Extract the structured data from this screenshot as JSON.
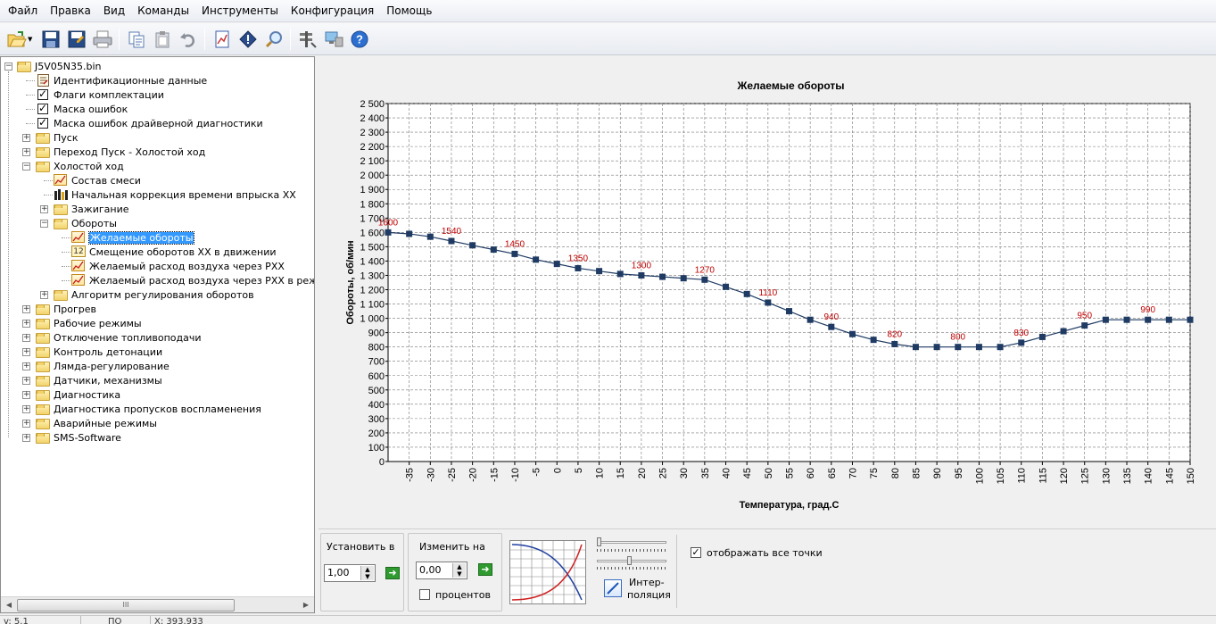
{
  "menu": [
    "Файл",
    "Правка",
    "Вид",
    "Команды",
    "Инструменты",
    "Конфигурация",
    "Помощь"
  ],
  "toolbar": {
    "icons": [
      "open-folder-icon",
      "save-icon",
      "save-as-icon",
      "print-icon",
      "copy-icon",
      "paste-icon",
      "undo-icon",
      "calibration-compare-icon",
      "error-info-icon",
      "search-icon",
      "settings-icon",
      "connect-icon",
      "help-icon"
    ]
  },
  "tree": {
    "root": "J5V05N35.bin",
    "items": [
      {
        "label": "Идентификационные данные",
        "icon": "document-icon",
        "level": 1,
        "expander": ""
      },
      {
        "label": "Флаги комплектации",
        "icon": "checkbox-icon",
        "level": 1,
        "expander": ""
      },
      {
        "label": "Маска ошибок",
        "icon": "checkbox-icon",
        "level": 1,
        "expander": ""
      },
      {
        "label": "Маска ошибок драйверной диагностики",
        "icon": "checkbox-icon",
        "level": 1,
        "expander": ""
      },
      {
        "label": "Пуск",
        "icon": "folder-icon",
        "level": 1,
        "expander": "+"
      },
      {
        "label": "Переход Пуск - Холостой ход",
        "icon": "folder-icon",
        "level": 1,
        "expander": "+"
      },
      {
        "label": "Холостой ход",
        "icon": "folder-icon",
        "level": 1,
        "expander": "-"
      },
      {
        "label": "Состав смеси",
        "icon": "graph-icon",
        "level": 2,
        "expander": ""
      },
      {
        "label": "Начальная коррекция времени впрыска ХХ",
        "icon": "bar-chart-icon",
        "level": 2,
        "expander": ""
      },
      {
        "label": "Зажигание",
        "icon": "folder-icon",
        "level": 2,
        "expander": "+"
      },
      {
        "label": "Обороты",
        "icon": "folder-icon",
        "level": 2,
        "expander": "-"
      },
      {
        "label": "Желаемые обороты",
        "icon": "graph-icon",
        "level": 3,
        "expander": "",
        "selected": true
      },
      {
        "label": "Смещение оборотов ХХ в движении",
        "icon": "number-icon",
        "level": 3,
        "expander": ""
      },
      {
        "label": "Желаемый расход воздуха через РХХ",
        "icon": "graph-icon",
        "level": 3,
        "expander": ""
      },
      {
        "label": "Желаемый расход воздуха через РХХ в режиме г",
        "icon": "graph-icon",
        "level": 3,
        "expander": ""
      },
      {
        "label": "Алгоритм регулирования оборотов",
        "icon": "folder-icon",
        "level": 2,
        "expander": "+"
      },
      {
        "label": "Прогрев",
        "icon": "folder-icon",
        "level": 1,
        "expander": "+"
      },
      {
        "label": "Рабочие режимы",
        "icon": "folder-icon",
        "level": 1,
        "expander": "+"
      },
      {
        "label": "Отключение топливоподачи",
        "icon": "folder-icon",
        "level": 1,
        "expander": "+"
      },
      {
        "label": "Контроль детонации",
        "icon": "folder-icon",
        "level": 1,
        "expander": "+"
      },
      {
        "label": "Лямда-регулирование",
        "icon": "folder-icon",
        "level": 1,
        "expander": "+"
      },
      {
        "label": "Датчики, механизмы",
        "icon": "folder-icon",
        "level": 1,
        "expander": "+"
      },
      {
        "label": "Диагностика",
        "icon": "folder-icon",
        "level": 1,
        "expander": "+"
      },
      {
        "label": "Диагностика пропусков воспламенения",
        "icon": "folder-icon",
        "level": 1,
        "expander": "+"
      },
      {
        "label": "Аварийные режимы",
        "icon": "folder-icon",
        "level": 1,
        "expander": "+"
      },
      {
        "label": "SMS-Software",
        "icon": "folder-icon",
        "level": 1,
        "expander": "+"
      }
    ]
  },
  "chart_data": {
    "type": "line",
    "title": "Желаемые обороты",
    "xlabel": "Температура, град.С",
    "ylabel": "Обороты, об/мин",
    "x_ticks": [
      -35,
      -30,
      -25,
      -20,
      -15,
      -10,
      -5,
      0,
      5,
      10,
      15,
      20,
      25,
      30,
      35,
      40,
      45,
      50,
      55,
      60,
      65,
      70,
      75,
      80,
      85,
      90,
      95,
      100,
      105,
      110,
      115,
      120,
      125,
      130,
      135,
      140,
      145,
      150
    ],
    "y_ticks": [
      "0",
      "100",
      "200",
      "300",
      "400",
      "500",
      "600",
      "700",
      "800",
      "900",
      "1 000",
      "1 100",
      "1 200",
      "1 300",
      "1 400",
      "1 500",
      "1 600",
      "1 700",
      "1 800",
      "1 900",
      "2 000",
      "2 100",
      "2 200",
      "2 300",
      "2 400",
      "2 500"
    ],
    "xlim": [
      -40,
      150
    ],
    "ylim": [
      0,
      2500
    ],
    "grid": true,
    "line_color": "#1f3b63",
    "marker_color": "#1f3b63",
    "label_color": "#c00000",
    "x": [
      -40,
      -35,
      -30,
      -25,
      -20,
      -15,
      -10,
      -5,
      0,
      5,
      10,
      15,
      20,
      25,
      30,
      35,
      40,
      45,
      50,
      55,
      60,
      65,
      70,
      75,
      80,
      85,
      90,
      95,
      100,
      105,
      110,
      115,
      120,
      125,
      130,
      135,
      140,
      145,
      150
    ],
    "y": [
      1600,
      1590,
      1570,
      1540,
      1510,
      1480,
      1450,
      1410,
      1380,
      1350,
      1330,
      1310,
      1300,
      1290,
      1280,
      1270,
      1220,
      1170,
      1110,
      1050,
      990,
      940,
      890,
      850,
      820,
      800,
      800,
      800,
      800,
      800,
      830,
      870,
      910,
      950,
      990,
      990,
      990,
      990,
      990
    ],
    "point_labels": [
      {
        "x": -40,
        "text": "1600"
      },
      {
        "x": -25,
        "text": "1540"
      },
      {
        "x": -10,
        "text": "1450"
      },
      {
        "x": 5,
        "text": "1350"
      },
      {
        "x": 20,
        "text": "1300"
      },
      {
        "x": 35,
        "text": "1270"
      },
      {
        "x": 50,
        "text": "1110"
      },
      {
        "x": 65,
        "text": "940"
      },
      {
        "x": 80,
        "text": "820"
      },
      {
        "x": 95,
        "text": "800"
      },
      {
        "x": 110,
        "text": "830"
      },
      {
        "x": 125,
        "text": "950"
      },
      {
        "x": 140,
        "text": "990"
      }
    ]
  },
  "controls": {
    "set_label": "Установить в",
    "set_value": "1,00",
    "change_label": "Изменить на",
    "change_value": "0,00",
    "percent_label": "процентов",
    "percent_checked": false,
    "interpolation_label_1": "Интер-",
    "interpolation_label_2": "поляция",
    "show_all_points_label": "отображать все точки",
    "show_all_points_checked": true
  },
  "status": {
    "cell1": "v: 5.1",
    "cell2": "ПО",
    "cell3": "Х: 393.933"
  }
}
